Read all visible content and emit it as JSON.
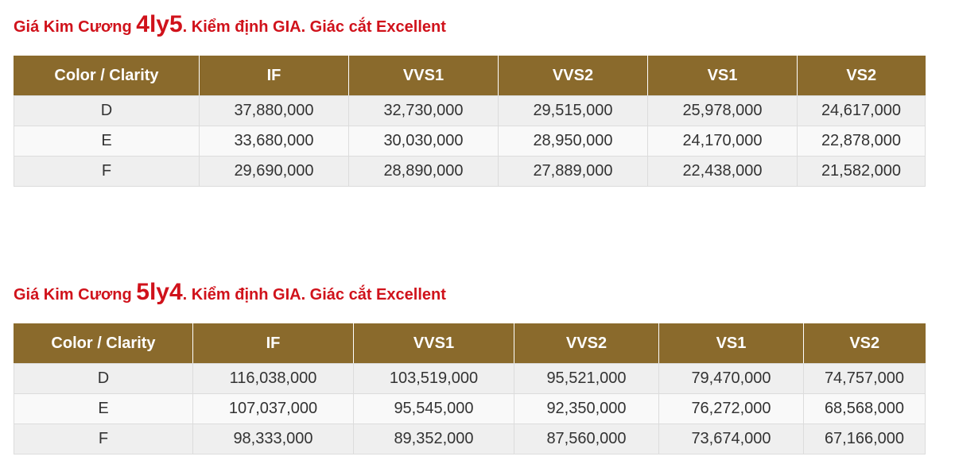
{
  "tables": [
    {
      "title_prefix": "Giá Kim Cương ",
      "title_size": "4ly5",
      "title_suffix": ". Kiểm định GIA. Giác cắt Excellent",
      "headers": [
        "Color / Clarity",
        "IF",
        "VVS1",
        "VVS2",
        "VS1",
        "VS2"
      ],
      "rows": [
        [
          "D",
          "37,880,000",
          "32,730,000",
          "29,515,000",
          "25,978,000",
          "24,617,000"
        ],
        [
          "E",
          "33,680,000",
          "30,030,000",
          "28,950,000",
          "24,170,000",
          "22,878,000"
        ],
        [
          "F",
          "29,690,000",
          "28,890,000",
          "27,889,000",
          "22,438,000",
          "21,582,000"
        ]
      ]
    },
    {
      "title_prefix": "Giá Kim Cương ",
      "title_size": "5ly4",
      "title_suffix": ". Kiểm định GIA. Giác cắt Excellent",
      "headers": [
        "Color / Clarity",
        "IF",
        "VVS1",
        "VVS2",
        "VS1",
        "VS2"
      ],
      "rows": [
        [
          "D",
          "116,038,000",
          "103,519,000",
          "95,521,000",
          "79,470,000",
          "74,757,000"
        ],
        [
          "E",
          "107,037,000",
          "95,545,000",
          "92,350,000",
          "76,272,000",
          "68,568,000"
        ],
        [
          "F",
          "98,333,000",
          "89,352,000",
          "87,560,000",
          "73,674,000",
          "67,166,000"
        ]
      ]
    }
  ],
  "colors": {
    "title_red": "#d0121b",
    "header_brown": "#8a6a2c"
  }
}
